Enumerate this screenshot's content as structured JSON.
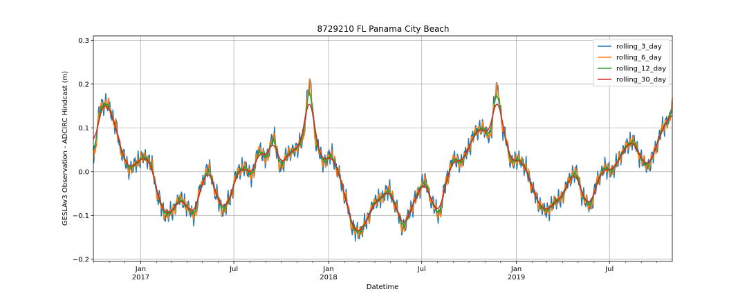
{
  "chart_data": {
    "type": "line",
    "title": "8729210 FL Panama City Beach",
    "xlabel": "Datetime",
    "ylabel": "GESLAv3 Observation - ADCIRC Hindcast (m)",
    "xlim": [
      "2016-10-01",
      "2019-10-31"
    ],
    "ylim": [
      -0.205,
      0.31
    ],
    "yticks": [
      -0.2,
      -0.1,
      0.0,
      0.1,
      0.2,
      0.3
    ],
    "ytick_labels": [
      "−0.2",
      "−0.1",
      "0.0",
      "0.1",
      "0.2",
      "0.3"
    ],
    "xticks_major": [
      {
        "date": "2017-01-01",
        "label": "Jan",
        "year": "2017"
      },
      {
        "date": "2017-07-01",
        "label": "Jul",
        "year": ""
      },
      {
        "date": "2018-01-01",
        "label": "Jan",
        "year": "2018"
      },
      {
        "date": "2018-07-01",
        "label": "Jul",
        "year": ""
      },
      {
        "date": "2019-01-01",
        "label": "Jan",
        "year": "2019"
      },
      {
        "date": "2019-07-01",
        "label": "Jul",
        "year": ""
      }
    ],
    "grid": true,
    "legend_position": "top-right",
    "anchors": {
      "x": [
        "2016-10-01",
        "2016-10-15",
        "2016-10-29",
        "2016-11-12",
        "2016-11-26",
        "2016-12-10",
        "2016-12-24",
        "2017-01-07",
        "2017-01-21",
        "2017-02-04",
        "2017-02-18",
        "2017-03-04",
        "2017-03-18",
        "2017-04-01",
        "2017-04-15",
        "2017-04-29",
        "2017-05-13",
        "2017-05-27",
        "2017-06-10",
        "2017-06-24",
        "2017-07-08",
        "2017-07-22",
        "2017-08-05",
        "2017-08-19",
        "2017-09-02",
        "2017-09-16",
        "2017-09-30",
        "2017-10-14",
        "2017-10-28",
        "2017-11-11",
        "2017-11-25",
        "2017-12-09",
        "2017-12-23",
        "2018-01-06",
        "2018-01-20",
        "2018-02-03",
        "2018-02-17",
        "2018-03-03",
        "2018-03-17",
        "2018-03-31",
        "2018-04-14",
        "2018-04-28",
        "2018-05-12",
        "2018-05-26",
        "2018-06-09",
        "2018-06-23",
        "2018-07-07",
        "2018-07-21",
        "2018-08-04",
        "2018-08-18",
        "2018-09-01",
        "2018-09-15",
        "2018-09-29",
        "2018-10-13",
        "2018-10-27",
        "2018-11-10",
        "2018-11-24",
        "2018-12-08",
        "2018-12-22",
        "2019-01-05",
        "2019-01-19",
        "2019-02-02",
        "2019-02-16",
        "2019-03-02",
        "2019-03-16",
        "2019-03-30",
        "2019-04-13",
        "2019-04-27",
        "2019-05-11",
        "2019-05-25",
        "2019-06-08",
        "2019-06-22",
        "2019-07-06",
        "2019-07-20",
        "2019-08-03",
        "2019-08-17",
        "2019-08-31",
        "2019-09-14",
        "2019-09-28",
        "2019-10-12",
        "2019-10-26",
        "2019-10-31"
      ],
      "y": [
        0.03,
        0.15,
        0.155,
        0.11,
        0.04,
        0.005,
        0.02,
        0.035,
        0.02,
        -0.06,
        -0.1,
        -0.09,
        -0.06,
        -0.08,
        -0.1,
        -0.03,
        0.01,
        -0.05,
        -0.09,
        -0.06,
        0.0,
        0.01,
        -0.01,
        0.05,
        0.03,
        0.08,
        0.01,
        0.04,
        0.05,
        0.07,
        0.2,
        0.06,
        0.02,
        0.04,
        0.0,
        -0.06,
        -0.13,
        -0.14,
        -0.11,
        -0.07,
        -0.06,
        -0.04,
        -0.08,
        -0.13,
        -0.09,
        -0.05,
        -0.02,
        -0.07,
        -0.1,
        -0.02,
        0.03,
        0.02,
        0.05,
        0.09,
        0.1,
        0.08,
        0.19,
        0.09,
        0.02,
        0.03,
        0.01,
        -0.04,
        -0.08,
        -0.09,
        -0.07,
        -0.06,
        -0.02,
        0.0,
        -0.06,
        -0.08,
        -0.02,
        0.01,
        0.0,
        0.03,
        0.06,
        0.07,
        0.03,
        0.01,
        0.05,
        0.1,
        0.12,
        0.16
      ]
    },
    "series": [
      {
        "name": "rolling_3_day",
        "color": "#1f77b4",
        "noise": 0.026,
        "smooth": 0
      },
      {
        "name": "rolling_6_day",
        "color": "#ff7f0e",
        "noise": 0.016,
        "smooth": 0
      },
      {
        "name": "rolling_12_day",
        "color": "#2ca02c",
        "noise": 0.006,
        "smooth": 1
      },
      {
        "name": "rolling_30_day",
        "color": "#d62728",
        "noise": 0.0,
        "smooth": 3
      }
    ]
  }
}
